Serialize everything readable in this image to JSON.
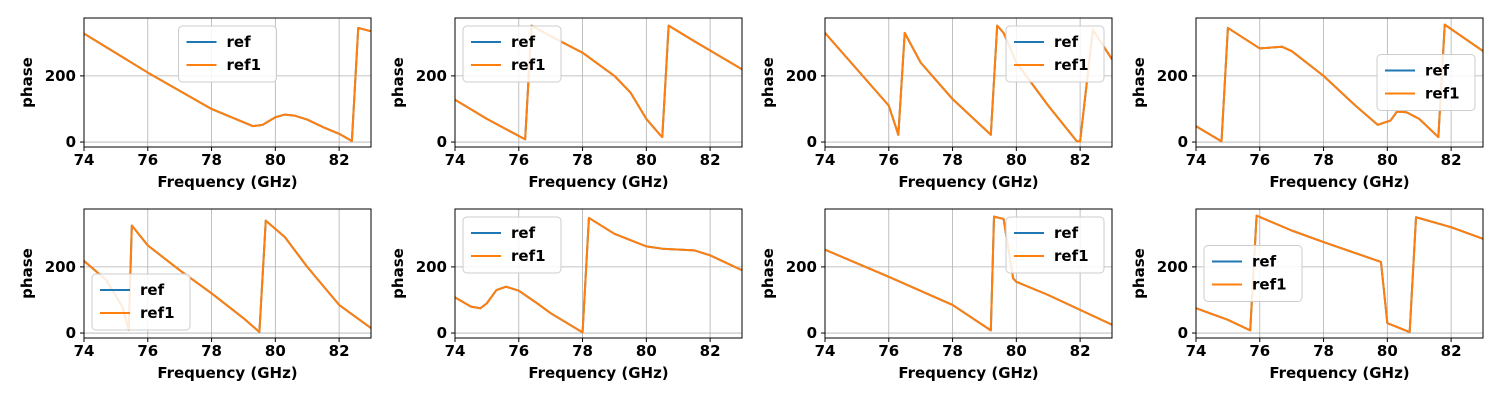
{
  "figure": {
    "colors": {
      "ref": "#1f77b4",
      "ref1": "#ff7f0e",
      "grid": "#b0b0b0",
      "axis": "#000000"
    }
  },
  "chart_data": [
    {
      "type": "line",
      "xlabel": "Frequency (GHz)",
      "ylabel": "phase",
      "xlim": [
        74,
        83
      ],
      "ylim": [
        -15,
        375
      ],
      "xticks": [
        "74",
        "76",
        "78",
        "80",
        "82"
      ],
      "yticks": [
        "0",
        "200"
      ],
      "grid": true,
      "legend_position": "upper-center",
      "series": [
        {
          "name": "ref",
          "x": [
            74,
            76,
            78,
            79.3,
            79.6,
            80.0,
            80.3,
            80.6,
            81.0,
            81.5,
            82.0,
            82.4,
            82.6,
            83
          ],
          "y": [
            328,
            210,
            100,
            48,
            52,
            75,
            83,
            80,
            68,
            45,
            25,
            3,
            345,
            335
          ]
        },
        {
          "name": "ref1",
          "x": [
            74,
            76,
            78,
            79.3,
            79.6,
            80.0,
            80.3,
            80.6,
            81.0,
            81.5,
            82.0,
            82.4,
            82.6,
            83
          ],
          "y": [
            328,
            210,
            100,
            48,
            52,
            75,
            83,
            80,
            68,
            45,
            25,
            3,
            345,
            335
          ]
        }
      ]
    },
    {
      "type": "line",
      "xlabel": "Frequency (GHz)",
      "ylabel": "phase",
      "xlim": [
        74,
        83
      ],
      "ylim": [
        -15,
        375
      ],
      "xticks": [
        "74",
        "76",
        "78",
        "80",
        "82"
      ],
      "yticks": [
        "0",
        "200"
      ],
      "grid": true,
      "legend_position": "upper-left",
      "series": [
        {
          "name": "ref",
          "x": [
            74,
            75,
            76.2,
            76.4,
            77,
            78,
            79,
            79.5,
            80,
            80.4,
            80.5,
            80.7,
            81.5,
            83
          ],
          "y": [
            128,
            70,
            8,
            352,
            320,
            270,
            200,
            150,
            70,
            25,
            15,
            352,
            305,
            220
          ]
        },
        {
          "name": "ref1",
          "x": [
            74,
            75,
            76.2,
            76.4,
            77,
            78,
            79,
            79.5,
            80,
            80.4,
            80.5,
            80.7,
            81.5,
            83
          ],
          "y": [
            128,
            70,
            8,
            352,
            320,
            270,
            200,
            150,
            70,
            25,
            15,
            352,
            305,
            220
          ]
        }
      ]
    },
    {
      "type": "line",
      "xlabel": "Frequency (GHz)",
      "ylabel": "phase",
      "xlim": [
        74,
        83
      ],
      "ylim": [
        -15,
        375
      ],
      "xticks": [
        "74",
        "76",
        "78",
        "80",
        "82"
      ],
      "yticks": [
        "0",
        "200"
      ],
      "grid": true,
      "legend_position": "upper-right",
      "series": [
        {
          "name": "ref",
          "x": [
            74,
            75,
            76,
            76.3,
            76.5,
            77,
            78,
            79.2,
            79.4,
            79.6,
            80,
            81,
            81.9,
            82.0,
            82.4,
            83
          ],
          "y": [
            330,
            220,
            110,
            22,
            330,
            240,
            130,
            22,
            352,
            330,
            240,
            110,
            2,
            2,
            340,
            250
          ]
        },
        {
          "name": "ref1",
          "x": [
            74,
            75,
            76,
            76.3,
            76.5,
            77,
            78,
            79.2,
            79.4,
            79.6,
            80,
            81,
            81.9,
            82.0,
            82.4,
            83
          ],
          "y": [
            330,
            220,
            110,
            22,
            330,
            240,
            130,
            22,
            352,
            330,
            240,
            110,
            2,
            2,
            340,
            250
          ]
        }
      ]
    },
    {
      "type": "line",
      "xlabel": "Frequency (GHz)",
      "ylabel": "phase",
      "xlim": [
        74,
        83
      ],
      "ylim": [
        -15,
        375
      ],
      "xticks": [
        "74",
        "76",
        "78",
        "80",
        "82"
      ],
      "yticks": [
        "0",
        "200"
      ],
      "grid": true,
      "legend_position": "center-right",
      "series": [
        {
          "name": "ref",
          "x": [
            74,
            74.8,
            75.0,
            76,
            76.7,
            77,
            78,
            79,
            79.7,
            80.1,
            80.3,
            80.6,
            81,
            81.6,
            81.8,
            83
          ],
          "y": [
            48,
            2,
            345,
            283,
            288,
            275,
            200,
            110,
            52,
            65,
            92,
            90,
            70,
            15,
            355,
            275
          ]
        },
        {
          "name": "ref1",
          "x": [
            74,
            74.8,
            75.0,
            76,
            76.7,
            77,
            78,
            79,
            79.7,
            80.1,
            80.3,
            80.6,
            81,
            81.6,
            81.8,
            83
          ],
          "y": [
            48,
            2,
            345,
            283,
            288,
            275,
            200,
            110,
            52,
            65,
            92,
            90,
            70,
            15,
            355,
            275
          ]
        }
      ]
    },
    {
      "type": "line",
      "xlabel": "Frequency (GHz)",
      "ylabel": "phase",
      "xlim": [
        74,
        83
      ],
      "ylim": [
        -15,
        375
      ],
      "xticks": [
        "74",
        "76",
        "78",
        "80",
        "82"
      ],
      "yticks": [
        "0",
        "200"
      ],
      "grid": true,
      "legend_position": "lower-left",
      "series": [
        {
          "name": "ref",
          "x": [
            74,
            74.7,
            75.2,
            75.4,
            75.5,
            76,
            77,
            78,
            79,
            79.5,
            79.7,
            80.3,
            81,
            82,
            83
          ],
          "y": [
            218,
            160,
            80,
            10,
            325,
            265,
            190,
            120,
            45,
            3,
            340,
            290,
            200,
            85,
            15
          ]
        },
        {
          "name": "ref1",
          "x": [
            74,
            74.7,
            75.2,
            75.4,
            75.5,
            76,
            77,
            78,
            79,
            79.5,
            79.7,
            80.3,
            81,
            82,
            83
          ],
          "y": [
            218,
            160,
            80,
            10,
            325,
            265,
            190,
            120,
            45,
            3,
            340,
            290,
            200,
            85,
            15
          ]
        }
      ]
    },
    {
      "type": "line",
      "xlabel": "Frequency (GHz)",
      "ylabel": "phase",
      "xlim": [
        74,
        83
      ],
      "ylim": [
        -15,
        375
      ],
      "xticks": [
        "74",
        "76",
        "78",
        "80",
        "82"
      ],
      "yticks": [
        "0",
        "200"
      ],
      "grid": true,
      "legend_position": "upper-left",
      "series": [
        {
          "name": "ref",
          "x": [
            74,
            74.5,
            74.8,
            75.0,
            75.3,
            75.6,
            76,
            76.5,
            77,
            78,
            78.2,
            79,
            80,
            80.5,
            81.5,
            82,
            83
          ],
          "y": [
            108,
            80,
            75,
            90,
            130,
            140,
            128,
            95,
            60,
            2,
            348,
            300,
            262,
            255,
            250,
            235,
            190
          ]
        },
        {
          "name": "ref1",
          "x": [
            74,
            74.5,
            74.8,
            75.0,
            75.3,
            75.6,
            76,
            76.5,
            77,
            78,
            78.2,
            79,
            80,
            80.5,
            81.5,
            82,
            83
          ],
          "y": [
            108,
            80,
            75,
            90,
            130,
            140,
            128,
            95,
            60,
            2,
            348,
            300,
            262,
            255,
            250,
            235,
            190
          ]
        }
      ]
    },
    {
      "type": "line",
      "xlabel": "Frequency (GHz)",
      "ylabel": "phase",
      "xlim": [
        74,
        83
      ],
      "ylim": [
        -15,
        375
      ],
      "xticks": [
        "74",
        "76",
        "78",
        "80",
        "82"
      ],
      "yticks": [
        "0",
        "200"
      ],
      "grid": true,
      "legend_position": "upper-right",
      "series": [
        {
          "name": "ref",
          "x": [
            74,
            76,
            78,
            79.2,
            79.3,
            79.6,
            79.9,
            80.0,
            81,
            82,
            83
          ],
          "y": [
            252,
            170,
            85,
            8,
            352,
            345,
            165,
            155,
            115,
            70,
            25
          ]
        },
        {
          "name": "ref1",
          "x": [
            74,
            76,
            78,
            79.2,
            79.3,
            79.6,
            79.9,
            80.0,
            81,
            82,
            83
          ],
          "y": [
            252,
            170,
            85,
            8,
            352,
            345,
            165,
            155,
            115,
            70,
            25
          ]
        }
      ]
    },
    {
      "type": "line",
      "xlabel": "Frequency (GHz)",
      "ylabel": "phase",
      "xlim": [
        74,
        83
      ],
      "ylim": [
        -15,
        375
      ],
      "xticks": [
        "74",
        "76",
        "78",
        "80",
        "82"
      ],
      "yticks": [
        "0",
        "200"
      ],
      "grid": true,
      "legend_position": "center-left",
      "series": [
        {
          "name": "ref",
          "x": [
            74,
            75,
            75.7,
            75.9,
            77,
            78,
            79.8,
            80.0,
            80.7,
            80.9,
            82,
            83
          ],
          "y": [
            75,
            40,
            8,
            355,
            310,
            275,
            215,
            30,
            3,
            350,
            320,
            285
          ]
        },
        {
          "name": "ref1",
          "x": [
            74,
            75,
            75.7,
            75.9,
            77,
            78,
            79.8,
            80.0,
            80.7,
            80.9,
            82,
            83
          ],
          "y": [
            75,
            40,
            8,
            355,
            310,
            275,
            215,
            30,
            3,
            350,
            320,
            285
          ]
        }
      ]
    }
  ]
}
